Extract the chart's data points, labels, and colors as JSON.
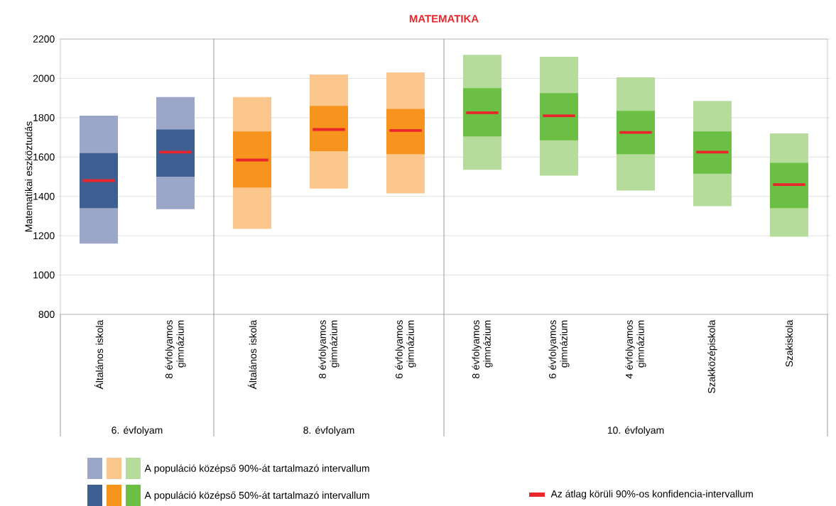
{
  "chart_data": {
    "type": "bar",
    "title": "MATEMATIKA",
    "ylabel": "Matematikai eszköztudás",
    "categories": [
      "Általános iskola",
      "8 évfolyamos gimnázium",
      "Általános iskola",
      "8 évfolyamos gimnázium",
      "6 évfolyamos gimnázium",
      "8 évfolyamos gimnázium",
      "6 évfolyamos gimnázium",
      "4 évfolyamos gimnázium",
      "Szakközépiskola",
      "Szakiskola"
    ],
    "series": [
      {
        "name": "A populáció középső 90%-át tartalmazó intervallum",
        "base": [
          1160,
          1335,
          1235,
          1440,
          1415,
          1535,
          1505,
          1430,
          1350,
          1195
        ],
        "values": [
          650,
          570,
          670,
          580,
          615,
          585,
          605,
          575,
          535,
          525
        ],
        "colors": [
          "#9ca6c9",
          "#9ca6c9",
          "#fbc78d",
          "#fbc78d",
          "#fbc78d",
          "#b5dc9a",
          "#b5dc9a",
          "#b5dc9a",
          "#b5dc9a",
          "#b5dc9a"
        ]
      },
      {
        "name": "A populáció középső 50%-át tartalmazó intervallum",
        "base": [
          1340,
          1500,
          1445,
          1630,
          1615,
          1705,
          1685,
          1615,
          1515,
          1340
        ],
        "values": [
          280,
          240,
          285,
          230,
          230,
          245,
          240,
          220,
          215,
          230
        ],
        "colors": [
          "#3d5f91",
          "#3d5f91",
          "#f7941d",
          "#f7941d",
          "#f7941d",
          "#6cbf45",
          "#6cbf45",
          "#6cbf45",
          "#6cbf45",
          "#6cbf45"
        ]
      },
      {
        "name": "Az átlag körüli 90%-os konfidencia-intervallum",
        "color": "#e8262b",
        "base": [
          1473,
          1618,
          1578,
          1733,
          1728,
          1818,
          1803,
          1718,
          1618,
          1453
        ],
        "values": [
          14,
          14,
          14,
          14,
          14,
          14,
          14,
          14,
          14,
          14
        ]
      }
    ],
    "ylim": [
      800,
      2200
    ],
    "yticks": [
      800,
      1000,
      1200,
      1400,
      1600,
      1800,
      2000,
      2200
    ],
    "grid": "y",
    "legend": "bottom",
    "annotations": [
      "6. évfolyam",
      "8. évfolyam",
      "10. évfolyam"
    ]
  }
}
